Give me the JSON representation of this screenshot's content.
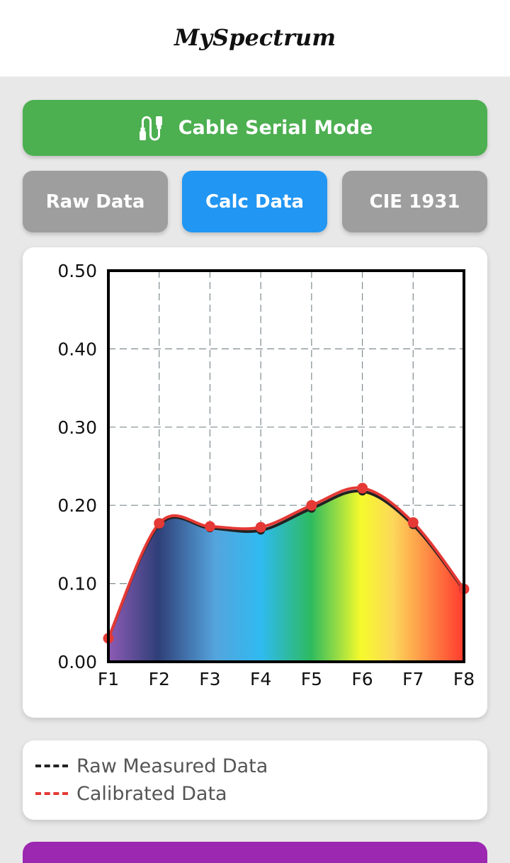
{
  "header": {
    "title": "MySpectrum"
  },
  "mode_button": {
    "label": "Cable Serial Mode",
    "icon": "cable-icon",
    "color": "#4caf50"
  },
  "tabs": [
    {
      "label": "Raw Data",
      "active": false
    },
    {
      "label": "Calc Data",
      "active": true
    },
    {
      "label": "CIE 1931",
      "active": false
    }
  ],
  "colors": {
    "active_tab": "#2196f3",
    "inactive_tab": "#9e9e9e",
    "raw_line": "#222222",
    "calibrated_line": "#e53935",
    "bottom_bar": "#9c27b0"
  },
  "chart_data": {
    "type": "line",
    "categories": [
      "F1",
      "F2",
      "F3",
      "F4",
      "F5",
      "F6",
      "F7",
      "F8"
    ],
    "y_ticks": [
      "0.00",
      "0.10",
      "0.30",
      "0.40",
      "0.50"
    ],
    "y_tick_values": [
      0,
      0.1,
      0.3,
      0.4,
      0.5
    ],
    "extra_tick": "0.20",
    "ylim": [
      0,
      0.5
    ],
    "grid": true,
    "series": [
      {
        "name": "Raw Measured Data",
        "values": [
          0.03,
          0.175,
          0.171,
          0.168,
          0.196,
          0.218,
          0.175,
          0.092
        ]
      },
      {
        "name": "Calibrated Data",
        "values": [
          0.03,
          0.177,
          0.173,
          0.172,
          0.2,
          0.222,
          0.178,
          0.093
        ]
      }
    ]
  },
  "legend": {
    "raw_label": "Raw Measured Data",
    "calibrated_label": "Calibrated Data"
  }
}
